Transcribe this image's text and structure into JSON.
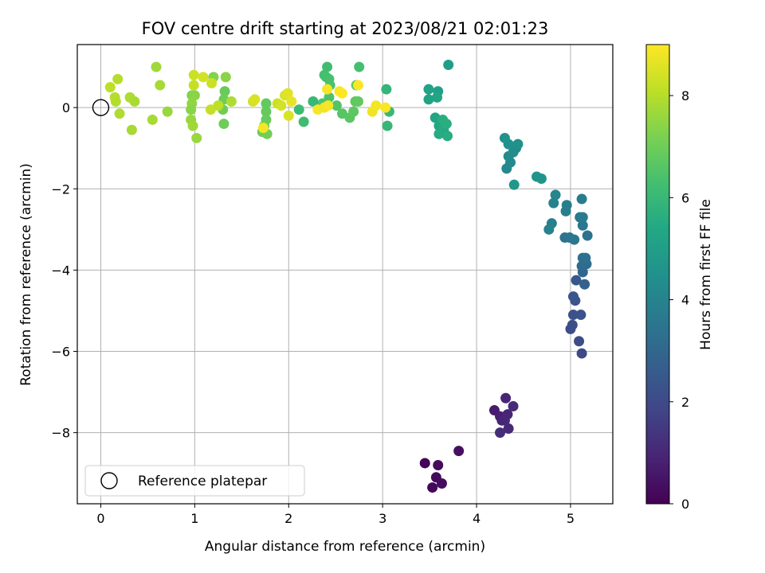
{
  "chart_data": {
    "type": "scatter",
    "title": "FOV centre drift starting at 2023/08/21 02:01:23",
    "xlabel": "Angular distance from reference (arcmin)",
    "ylabel": "Rotation from reference (arcmin)",
    "xlim": [
      -0.25,
      5.45
    ],
    "ylim": [
      -9.75,
      1.55
    ],
    "xticks": [
      0,
      1,
      2,
      3,
      4,
      5
    ],
    "yticks": [
      0,
      -2,
      -4,
      -6,
      -8
    ],
    "grid": true,
    "colormap": "viridis",
    "colorbar": {
      "label": "Hours from first FF file",
      "range": [
        0,
        9
      ],
      "ticks": [
        0,
        2,
        4,
        6,
        8
      ]
    },
    "legend": {
      "location": "lower-left",
      "entries": [
        {
          "label": "Reference platepar",
          "marker": "open-circle"
        }
      ]
    },
    "reference_point": {
      "x": 0,
      "y": 0
    },
    "points": [
      {
        "x": 3.45,
        "y": -8.75,
        "h": 0.1
      },
      {
        "x": 3.53,
        "y": -9.35,
        "h": 0.15
      },
      {
        "x": 3.57,
        "y": -9.1,
        "h": 0.2
      },
      {
        "x": 3.59,
        "y": -8.8,
        "h": 0.25
      },
      {
        "x": 3.63,
        "y": -9.25,
        "h": 0.3
      },
      {
        "x": 3.81,
        "y": -8.45,
        "h": 0.35
      },
      {
        "x": 4.19,
        "y": -7.45,
        "h": 0.7
      },
      {
        "x": 4.25,
        "y": -7.6,
        "h": 0.8
      },
      {
        "x": 4.27,
        "y": -7.7,
        "h": 0.85
      },
      {
        "x": 4.31,
        "y": -7.15,
        "h": 0.9
      },
      {
        "x": 4.33,
        "y": -7.55,
        "h": 0.95
      },
      {
        "x": 4.3,
        "y": -7.7,
        "h": 1.0
      },
      {
        "x": 4.34,
        "y": -7.9,
        "h": 1.05
      },
      {
        "x": 4.39,
        "y": -7.35,
        "h": 1.1
      },
      {
        "x": 4.25,
        "y": -8.0,
        "h": 1.15
      },
      {
        "x": 5.12,
        "y": -6.05,
        "h": 2.0
      },
      {
        "x": 5.09,
        "y": -5.75,
        "h": 2.05
      },
      {
        "x": 5.0,
        "y": -5.45,
        "h": 2.1
      },
      {
        "x": 5.02,
        "y": -5.35,
        "h": 2.15
      },
      {
        "x": 5.03,
        "y": -5.1,
        "h": 2.2
      },
      {
        "x": 5.11,
        "y": -5.1,
        "h": 2.25
      },
      {
        "x": 5.05,
        "y": -4.75,
        "h": 2.3
      },
      {
        "x": 5.03,
        "y": -4.65,
        "h": 2.35
      },
      {
        "x": 5.06,
        "y": -4.25,
        "h": 2.45
      },
      {
        "x": 5.15,
        "y": -4.35,
        "h": 2.8
      },
      {
        "x": 5.13,
        "y": -4.05,
        "h": 3.0
      },
      {
        "x": 5.12,
        "y": -3.9,
        "h": 3.1
      },
      {
        "x": 5.17,
        "y": -3.85,
        "h": 3.2
      },
      {
        "x": 5.13,
        "y": -3.7,
        "h": 3.3
      },
      {
        "x": 5.16,
        "y": -3.7,
        "h": 3.35
      },
      {
        "x": 5.18,
        "y": -3.15,
        "h": 3.4
      },
      {
        "x": 4.94,
        "y": -3.2,
        "h": 3.45
      },
      {
        "x": 4.99,
        "y": -3.2,
        "h": 3.5
      },
      {
        "x": 5.04,
        "y": -3.25,
        "h": 3.55
      },
      {
        "x": 5.13,
        "y": -2.9,
        "h": 3.6
      },
      {
        "x": 5.1,
        "y": -2.7,
        "h": 3.65
      },
      {
        "x": 5.13,
        "y": -2.7,
        "h": 3.7
      },
      {
        "x": 5.12,
        "y": -2.25,
        "h": 3.75
      },
      {
        "x": 4.95,
        "y": -2.55,
        "h": 3.8
      },
      {
        "x": 4.96,
        "y": -2.4,
        "h": 3.85
      },
      {
        "x": 4.8,
        "y": -2.85,
        "h": 3.9
      },
      {
        "x": 4.77,
        "y": -3.0,
        "h": 3.95
      },
      {
        "x": 4.82,
        "y": -2.35,
        "h": 4.0
      },
      {
        "x": 4.84,
        "y": -2.15,
        "h": 4.05
      },
      {
        "x": 4.64,
        "y": -1.7,
        "h": 4.6
      },
      {
        "x": 4.69,
        "y": -1.75,
        "h": 4.65
      },
      {
        "x": 4.4,
        "y": -1.9,
        "h": 4.7
      },
      {
        "x": 4.32,
        "y": -1.5,
        "h": 4.2
      },
      {
        "x": 4.36,
        "y": -1.35,
        "h": 4.25
      },
      {
        "x": 4.34,
        "y": -1.2,
        "h": 4.3
      },
      {
        "x": 4.39,
        "y": -1.1,
        "h": 4.35
      },
      {
        "x": 4.42,
        "y": -1.0,
        "h": 4.4
      },
      {
        "x": 4.34,
        "y": -0.9,
        "h": 4.45
      },
      {
        "x": 4.44,
        "y": -0.9,
        "h": 4.5
      },
      {
        "x": 4.3,
        "y": -0.75,
        "h": 4.55
      },
      {
        "x": 3.7,
        "y": 1.05,
        "h": 5.0
      },
      {
        "x": 3.59,
        "y": 0.4,
        "h": 5.1
      },
      {
        "x": 3.49,
        "y": 0.45,
        "h": 5.15
      },
      {
        "x": 3.49,
        "y": 0.2,
        "h": 5.2
      },
      {
        "x": 3.58,
        "y": 0.25,
        "h": 5.25
      },
      {
        "x": 3.56,
        "y": -0.25,
        "h": 5.3
      },
      {
        "x": 3.6,
        "y": -0.45,
        "h": 5.35
      },
      {
        "x": 3.63,
        "y": -0.55,
        "h": 5.4
      },
      {
        "x": 3.65,
        "y": -0.55,
        "h": 5.45
      },
      {
        "x": 3.6,
        "y": -0.65,
        "h": 5.5
      },
      {
        "x": 3.69,
        "y": -0.7,
        "h": 5.55
      },
      {
        "x": 3.68,
        "y": -0.4,
        "h": 5.6
      },
      {
        "x": 3.64,
        "y": -0.3,
        "h": 5.65
      },
      {
        "x": 3.04,
        "y": 0.45,
        "h": 5.9
      },
      {
        "x": 3.05,
        "y": -0.45,
        "h": 5.95
      },
      {
        "x": 3.07,
        "y": -0.1,
        "h": 6.0
      },
      {
        "x": 2.41,
        "y": 1.0,
        "h": 6.2
      },
      {
        "x": 2.4,
        "y": 0.75,
        "h": 6.25
      },
      {
        "x": 2.38,
        "y": 0.8,
        "h": 6.3
      },
      {
        "x": 2.43,
        "y": 0.7,
        "h": 6.35
      },
      {
        "x": 2.44,
        "y": 0.55,
        "h": 6.4
      },
      {
        "x": 2.43,
        "y": 0.25,
        "h": 6.45
      },
      {
        "x": 2.36,
        "y": 0.1,
        "h": 6.5
      },
      {
        "x": 2.51,
        "y": 0.05,
        "h": 6.55
      },
      {
        "x": 2.57,
        "y": -0.15,
        "h": 6.6
      },
      {
        "x": 2.65,
        "y": -0.25,
        "h": 6.65
      },
      {
        "x": 2.69,
        "y": -0.1,
        "h": 6.7
      },
      {
        "x": 2.71,
        "y": 0.15,
        "h": 6.75
      },
      {
        "x": 2.74,
        "y": 0.15,
        "h": 6.8
      },
      {
        "x": 2.75,
        "y": 1.0,
        "h": 6.3
      },
      {
        "x": 2.72,
        "y": 0.55,
        "h": 6.7
      },
      {
        "x": 2.26,
        "y": 0.15,
        "h": 6.0
      },
      {
        "x": 2.11,
        "y": -0.05,
        "h": 6.1
      },
      {
        "x": 2.16,
        "y": -0.35,
        "h": 6.2
      },
      {
        "x": 1.76,
        "y": 0.1,
        "h": 6.8
      },
      {
        "x": 1.76,
        "y": -0.1,
        "h": 6.85
      },
      {
        "x": 1.76,
        "y": -0.3,
        "h": 6.9
      },
      {
        "x": 1.74,
        "y": -0.45,
        "h": 6.95
      },
      {
        "x": 1.72,
        "y": -0.6,
        "h": 7.0
      },
      {
        "x": 1.77,
        "y": -0.65,
        "h": 7.05
      },
      {
        "x": 1.32,
        "y": 0.4,
        "h": 6.9
      },
      {
        "x": 1.31,
        "y": 0.2,
        "h": 7.0
      },
      {
        "x": 1.3,
        "y": -0.05,
        "h": 7.0
      },
      {
        "x": 1.31,
        "y": -0.4,
        "h": 7.0
      },
      {
        "x": 1.2,
        "y": 0.75,
        "h": 7.3
      },
      {
        "x": 1.33,
        "y": 0.75,
        "h": 7.4
      },
      {
        "x": 1.39,
        "y": 0.15,
        "h": 7.9
      },
      {
        "x": 0.59,
        "y": 1.0,
        "h": 7.7
      },
      {
        "x": 0.63,
        "y": 0.55,
        "h": 7.8
      },
      {
        "x": 0.71,
        "y": -0.1,
        "h": 7.6
      },
      {
        "x": 0.55,
        "y": -0.3,
        "h": 7.8
      },
      {
        "x": 0.33,
        "y": -0.55,
        "h": 7.8
      },
      {
        "x": 0.31,
        "y": 0.25,
        "h": 7.9
      },
      {
        "x": 0.36,
        "y": 0.15,
        "h": 7.85
      },
      {
        "x": 0.18,
        "y": 0.7,
        "h": 8.0
      },
      {
        "x": 0.1,
        "y": 0.5,
        "h": 8.1
      },
      {
        "x": 0.15,
        "y": 0.25,
        "h": 8.0
      },
      {
        "x": 0.16,
        "y": 0.15,
        "h": 7.95
      },
      {
        "x": 0.2,
        "y": -0.15,
        "h": 7.9
      },
      {
        "x": 0.97,
        "y": 0.3,
        "h": 7.3
      },
      {
        "x": 1.0,
        "y": 0.3,
        "h": 7.4
      },
      {
        "x": 0.97,
        "y": 0.1,
        "h": 7.5
      },
      {
        "x": 0.96,
        "y": -0.05,
        "h": 7.4
      },
      {
        "x": 0.96,
        "y": -0.3,
        "h": 7.6
      },
      {
        "x": 0.98,
        "y": -0.45,
        "h": 7.7
      },
      {
        "x": 1.02,
        "y": -0.75,
        "h": 7.6
      },
      {
        "x": 0.99,
        "y": 0.55,
        "h": 8.2
      },
      {
        "x": 0.99,
        "y": 0.8,
        "h": 8.3
      },
      {
        "x": 1.09,
        "y": 0.75,
        "h": 8.4
      },
      {
        "x": 1.18,
        "y": 0.6,
        "h": 8.3
      },
      {
        "x": 1.17,
        "y": -0.05,
        "h": 8.2
      },
      {
        "x": 1.25,
        "y": 0.05,
        "h": 8.1
      },
      {
        "x": 1.62,
        "y": 0.15,
        "h": 8.4
      },
      {
        "x": 1.64,
        "y": 0.2,
        "h": 8.5
      },
      {
        "x": 1.88,
        "y": 0.1,
        "h": 8.3
      },
      {
        "x": 1.92,
        "y": 0.05,
        "h": 8.4
      },
      {
        "x": 1.96,
        "y": 0.3,
        "h": 8.5
      },
      {
        "x": 1.99,
        "y": 0.35,
        "h": 8.6
      },
      {
        "x": 2.0,
        "y": -0.2,
        "h": 8.5
      },
      {
        "x": 2.03,
        "y": 0.15,
        "h": 8.7
      },
      {
        "x": 1.73,
        "y": -0.5,
        "h": 8.9
      },
      {
        "x": 2.31,
        "y": -0.05,
        "h": 8.9
      },
      {
        "x": 2.38,
        "y": 0.0,
        "h": 8.8
      },
      {
        "x": 2.42,
        "y": 0.05,
        "h": 8.9
      },
      {
        "x": 2.41,
        "y": 0.45,
        "h": 8.9
      },
      {
        "x": 2.54,
        "y": 0.4,
        "h": 8.95
      },
      {
        "x": 2.57,
        "y": 0.35,
        "h": 9.0
      },
      {
        "x": 2.74,
        "y": 0.55,
        "h": 8.95
      },
      {
        "x": 2.89,
        "y": -0.1,
        "h": 8.8
      },
      {
        "x": 2.93,
        "y": 0.05,
        "h": 8.85
      },
      {
        "x": 3.03,
        "y": 0.0,
        "h": 8.95
      }
    ]
  }
}
